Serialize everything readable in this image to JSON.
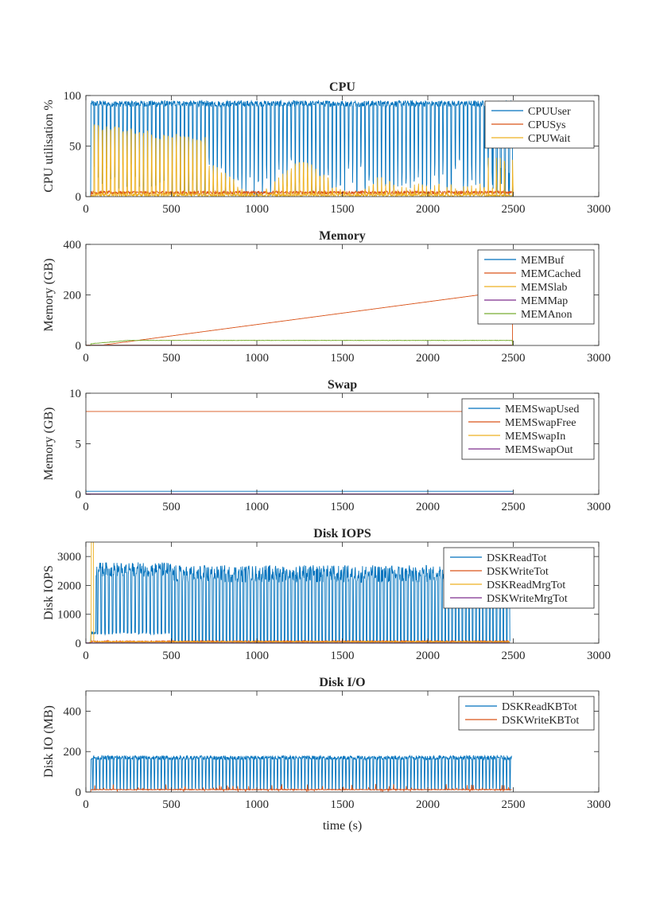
{
  "chart_data": [
    {
      "type": "line",
      "title": "CPU",
      "ylabel": "CPU utilisation %",
      "xlabel": "",
      "xlim": [
        0,
        3000
      ],
      "ylim": [
        0,
        100
      ],
      "xticks": [
        "0",
        "500",
        "1000",
        "1500",
        "2000",
        "2500",
        "3000"
      ],
      "yticks": [
        "0",
        "50",
        "100"
      ],
      "legend_position": "top-right",
      "series": [
        {
          "name": "CPUUser",
          "color": "#0072BD",
          "profile": "cpu_user",
          "base": 92,
          "low": 0,
          "end": 2500
        },
        {
          "name": "CPUSys",
          "color": "#D95319",
          "profile": "small_noise",
          "base": 4,
          "end": 2500
        },
        {
          "name": "CPUWait",
          "color": "#EDB120",
          "profile": "cpu_wait",
          "base": 65,
          "end": 2500
        }
      ]
    },
    {
      "type": "line",
      "title": "Memory",
      "ylabel": "Memory (GB)",
      "xlabel": "",
      "xlim": [
        0,
        3000
      ],
      "ylim": [
        0,
        400
      ],
      "xticks": [
        "0",
        "500",
        "1000",
        "1500",
        "2000",
        "2500",
        "3000"
      ],
      "yticks": [
        "0",
        "200",
        "400"
      ],
      "legend_position": "top-right",
      "series": [
        {
          "name": "MEMBuf",
          "color": "#0072BD",
          "profile": "flat",
          "base": 0.5,
          "end": 2500
        },
        {
          "name": "MEMCached",
          "color": "#D95319",
          "profile": "ramp",
          "start_value": 0,
          "end_value": 218,
          "end": 2500
        },
        {
          "name": "MEMSlab",
          "color": "#EDB120",
          "profile": "flat",
          "base": 2,
          "end": 2500
        },
        {
          "name": "MEMMap",
          "color": "#7E2F8E",
          "profile": "flat",
          "base": 1,
          "end": 2500
        },
        {
          "name": "MEMAnon",
          "color": "#77AC30",
          "profile": "anon",
          "base": 20,
          "end": 2500
        }
      ]
    },
    {
      "type": "line",
      "title": "Swap",
      "ylabel": "Memory (GB)",
      "xlabel": "",
      "xlim": [
        0,
        3000
      ],
      "ylim": [
        0,
        10
      ],
      "xticks": [
        "0",
        "500",
        "1000",
        "1500",
        "2000",
        "2500",
        "3000"
      ],
      "yticks": [
        "0",
        "5",
        "10"
      ],
      "legend_position": "top-right",
      "series": [
        {
          "name": "MEMSwapUsed",
          "color": "#0072BD",
          "profile": "flat",
          "base": 0.3,
          "end": 2500
        },
        {
          "name": "MEMSwapFree",
          "color": "#D95319",
          "profile": "flat",
          "base": 8.2,
          "end": 2500
        },
        {
          "name": "MEMSwapIn",
          "color": "#EDB120",
          "profile": "flat",
          "base": 0.05,
          "end": 2500
        },
        {
          "name": "MEMSwapOut",
          "color": "#7E2F8E",
          "profile": "flat",
          "base": 0.05,
          "end": 2500
        }
      ]
    },
    {
      "type": "line",
      "title": "Disk IOPS",
      "ylabel": "Disk IOPS",
      "xlabel": "",
      "xlim": [
        0,
        3000
      ],
      "ylim": [
        0,
        3500
      ],
      "xticks": [
        "0",
        "500",
        "1000",
        "1500",
        "2000",
        "2500",
        "3000"
      ],
      "yticks": [
        "0",
        "1000",
        "2000",
        "3000"
      ],
      "legend_position": "top-right",
      "series": [
        {
          "name": "DSKReadTot",
          "color": "#0072BD",
          "profile": "iops_read",
          "base": 2600,
          "end": 2480
        },
        {
          "name": "DSKWriteTot",
          "color": "#D95319",
          "profile": "small_noise",
          "base": 60,
          "end": 2480
        },
        {
          "name": "DSKReadMrgTot",
          "color": "#EDB120",
          "profile": "iops_merge",
          "base": 40,
          "peak": 3500,
          "end": 2480
        },
        {
          "name": "DSKWriteMrgTot",
          "color": "#7E2F8E",
          "profile": "flat",
          "base": 10,
          "end": 2480
        }
      ]
    },
    {
      "type": "line",
      "title": "Disk I/O",
      "ylabel": "Disk IO (MB)",
      "xlabel": "time (s)",
      "xlim": [
        0,
        3000
      ],
      "ylim": [
        0,
        500
      ],
      "xticks": [
        "0",
        "500",
        "1000",
        "1500",
        "2000",
        "2500",
        "3000"
      ],
      "yticks": [
        "0",
        "200",
        "400"
      ],
      "legend_position": "top-right",
      "series": [
        {
          "name": "DSKReadKBTot",
          "color": "#0072BD",
          "profile": "io_read",
          "base": 170,
          "end": 2490
        },
        {
          "name": "DSKWriteKBTot",
          "color": "#D95319",
          "profile": "io_write",
          "base": 10,
          "peak": 40,
          "end": 2490
        }
      ]
    }
  ]
}
